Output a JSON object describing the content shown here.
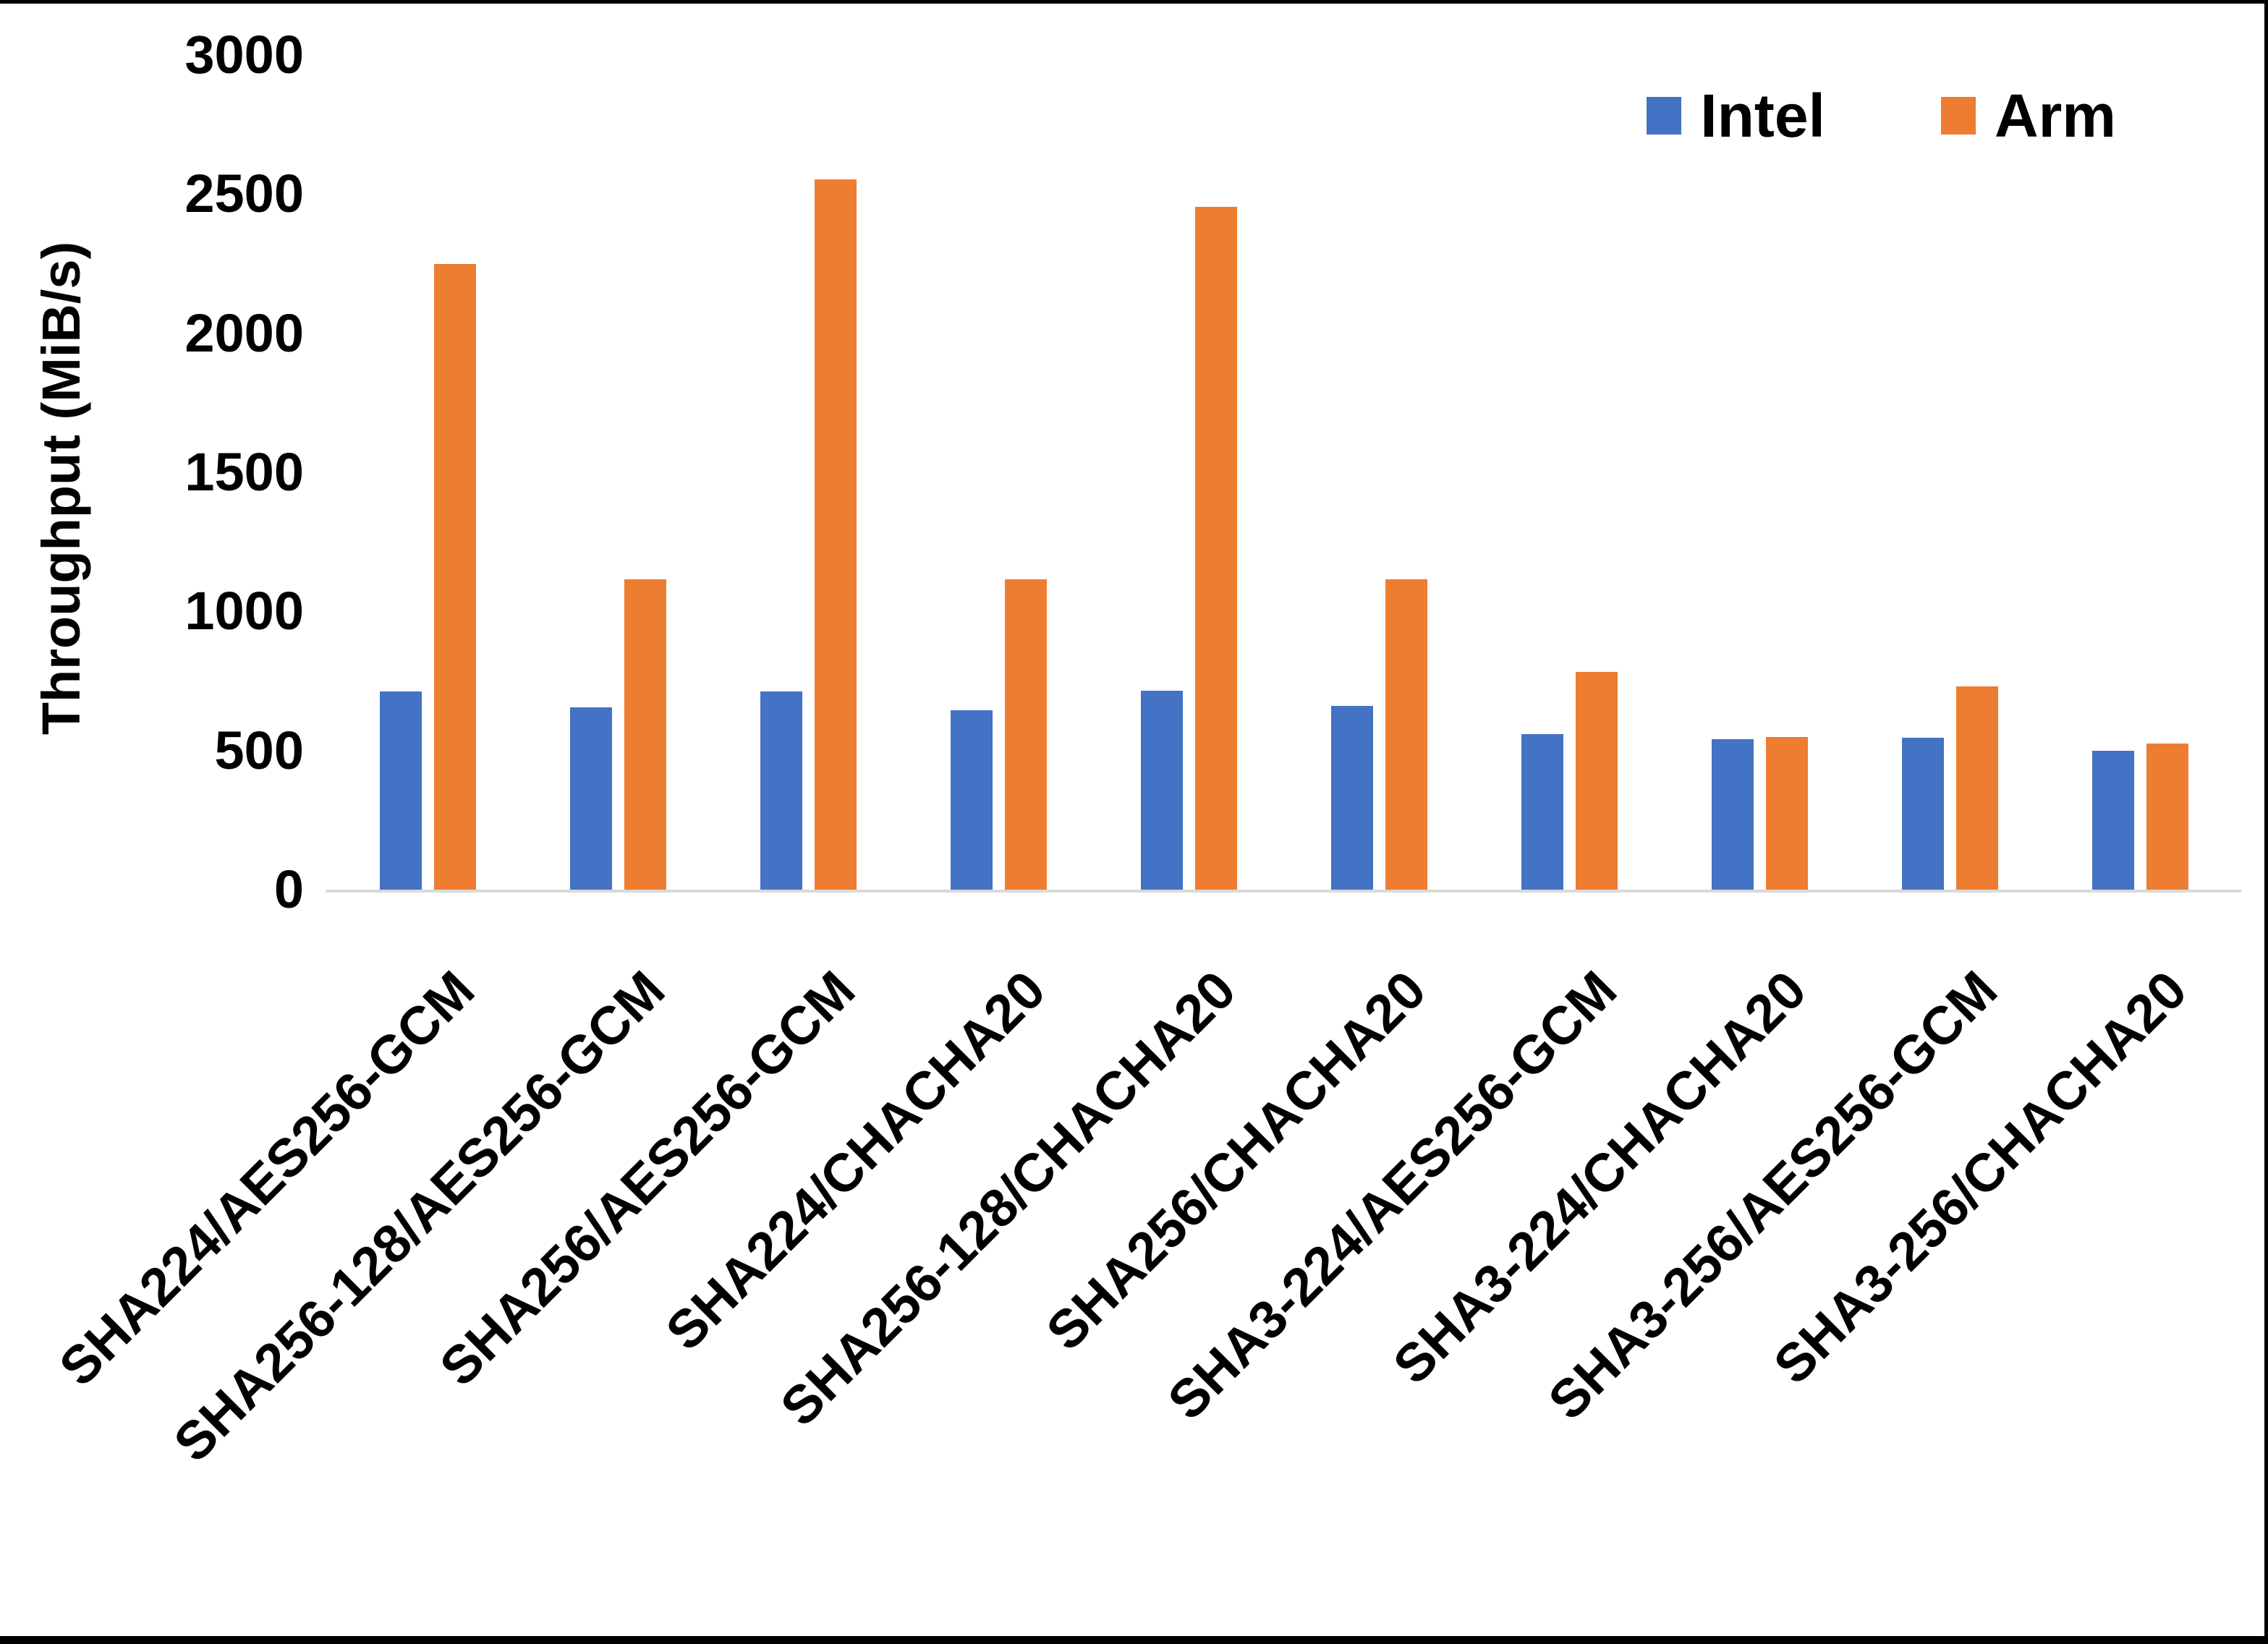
{
  "chart_data": {
    "type": "bar",
    "title": "",
    "xlabel": "",
    "ylabel": "Throughput (MiB/s)",
    "ylim": [
      0,
      3000
    ],
    "yticks": [
      0,
      500,
      1000,
      1500,
      2000,
      2500,
      3000
    ],
    "grid": false,
    "legend_position": "top-right",
    "categories": [
      "SHA224/AES256-GCM",
      "SHA256-128/AES256-GCM",
      "SHA256/AES256-GCM",
      "SHA224/CHACHA20",
      "SHA256-128/CHACHA20",
      "SHA256/CHACHA20",
      "SHA3-224/AES256-GCM",
      "SHA3-224/CHACHA20",
      "SHA3-256/AES256-GCM",
      "SHA3-256/CHACHA20"
    ],
    "series": [
      {
        "name": "Intel",
        "color": "#4472C4",
        "values": [
          712,
          655,
          712,
          645,
          714,
          660,
          560,
          540,
          546,
          500
        ]
      },
      {
        "name": "Arm",
        "color": "#ED7D31",
        "values": [
          2248,
          1115,
          2554,
          1115,
          2454,
          1115,
          782,
          549,
          730,
          524
        ]
      }
    ],
    "axis_line_color": "#D9D9D9",
    "text_color": "#000000",
    "background_color": "#FFFFFF",
    "frame_color": "#000000"
  }
}
